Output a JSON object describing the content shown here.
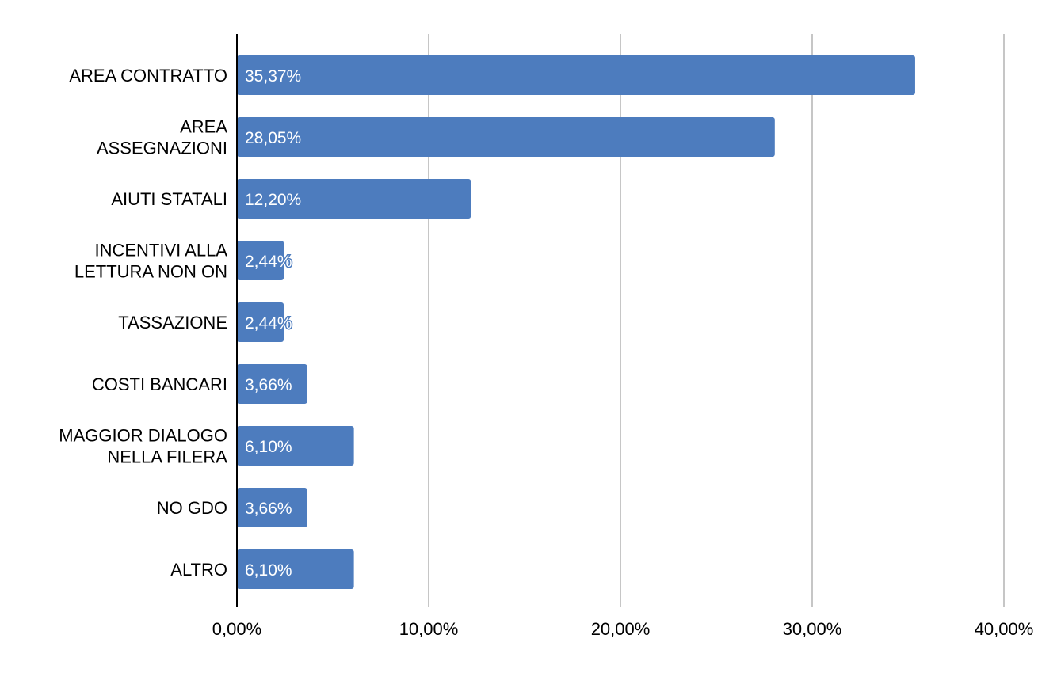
{
  "chart_data": {
    "type": "bar",
    "orientation": "horizontal",
    "categories": [
      [
        "AREA CONTRATTO"
      ],
      [
        "AREA",
        "ASSEGNAZIONI"
      ],
      [
        "AIUTI STATALI"
      ],
      [
        "INCENTIVI ALLA",
        "LETTURA NON ON"
      ],
      [
        "TASSAZIONE"
      ],
      [
        "COSTI BANCARI"
      ],
      [
        "MAGGIOR DIALOGO",
        "NELLA FILERA"
      ],
      [
        "NO GDO"
      ],
      [
        "ALTRO"
      ]
    ],
    "values": [
      35.37,
      28.05,
      12.2,
      2.44,
      2.44,
      3.66,
      6.1,
      3.66,
      6.1
    ],
    "value_labels": [
      "35,37%",
      "28,05%",
      "12,20%",
      "2,44%",
      "2,44%",
      "3,66%",
      "6,10%",
      "3,66%",
      "6,10%"
    ],
    "xlim": [
      0,
      40
    ],
    "x_ticks": [
      0,
      10,
      20,
      30,
      40
    ],
    "x_tick_labels": [
      "0,00%",
      "10,00%",
      "20,00%",
      "30,00%",
      "40,00%"
    ],
    "grid": true,
    "legend": "none",
    "colors": {
      "bar": "#4d7cbe",
      "grid": "#c6c6c6",
      "axis": "#000000",
      "label_text": "#ffffff"
    }
  }
}
